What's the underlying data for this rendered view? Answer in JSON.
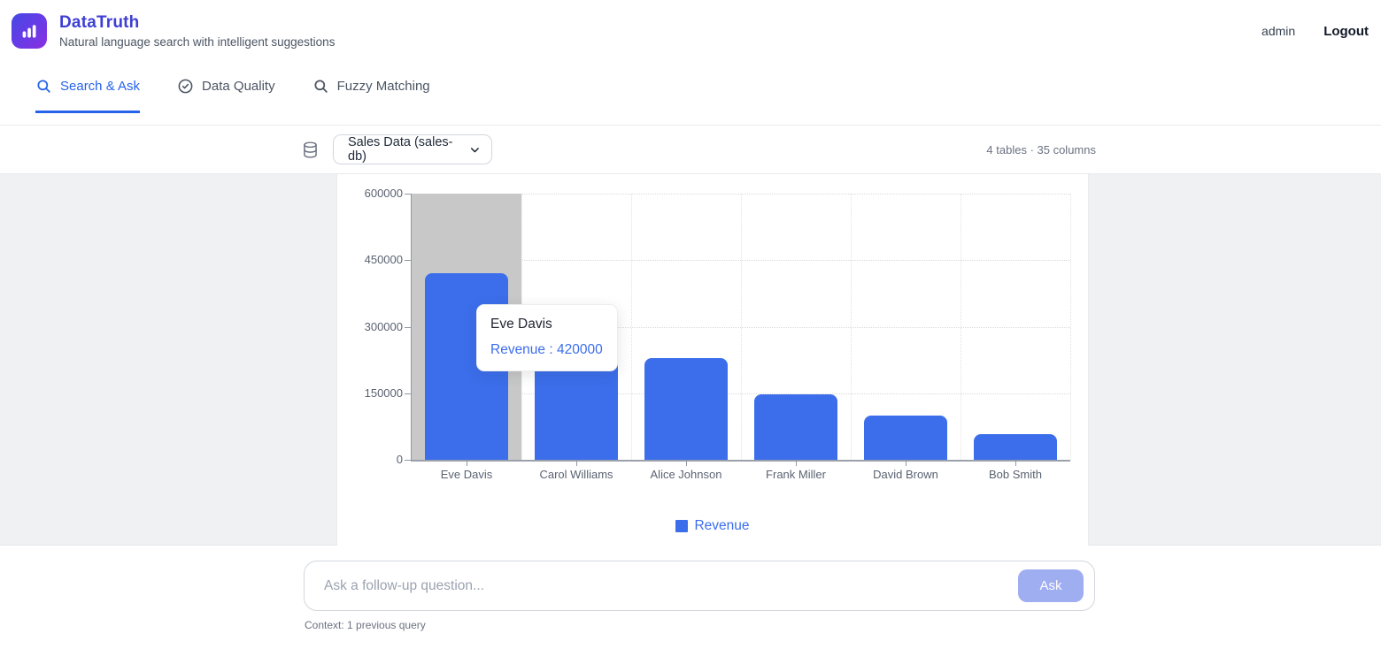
{
  "header": {
    "app_name": "DataTruth",
    "tagline": "Natural language search with intelligent suggestions",
    "user": "admin",
    "logout_label": "Logout"
  },
  "tabs": [
    {
      "label": "Search & Ask",
      "icon": "search-icon",
      "active": true
    },
    {
      "label": "Data Quality",
      "icon": "check-circle-icon",
      "active": false
    },
    {
      "label": "Fuzzy Matching",
      "icon": "search-icon",
      "active": false
    }
  ],
  "toolbar": {
    "icon": "database-icon",
    "dataset_selected": "Sales Data (sales-db)",
    "stats": "4 tables · 35 columns"
  },
  "chart_data": {
    "type": "bar",
    "categories": [
      "Eve Davis",
      "Carol Williams",
      "Alice Johnson",
      "Frank Miller",
      "David Brown",
      "Bob Smith"
    ],
    "series": [
      {
        "name": "Revenue",
        "color": "#3C6EEB",
        "values": [
          420000,
          245000,
          230000,
          147000,
          100000,
          58000
        ]
      }
    ],
    "title": "",
    "xlabel": "",
    "ylabel": "",
    "ylim": [
      0,
      600000
    ],
    "yticks": [
      0,
      150000,
      300000,
      450000,
      600000
    ],
    "grid": "dotted",
    "legend_position": "bottom",
    "highlight_index": 0,
    "tooltip": {
      "label": "Eve Davis",
      "value_text": "Revenue : 420000"
    }
  },
  "footer": {
    "placeholder": "Ask a follow-up question...",
    "ask_label": "Ask",
    "context_note": "Context: 1 previous query"
  },
  "colors": {
    "accent_blue": "#2563eb",
    "bar_blue": "#3C6EEB",
    "brand_indigo": "#3e3fd3",
    "cursor_gray": "#c8c8c8",
    "content_bg": "#f0f1f3"
  }
}
